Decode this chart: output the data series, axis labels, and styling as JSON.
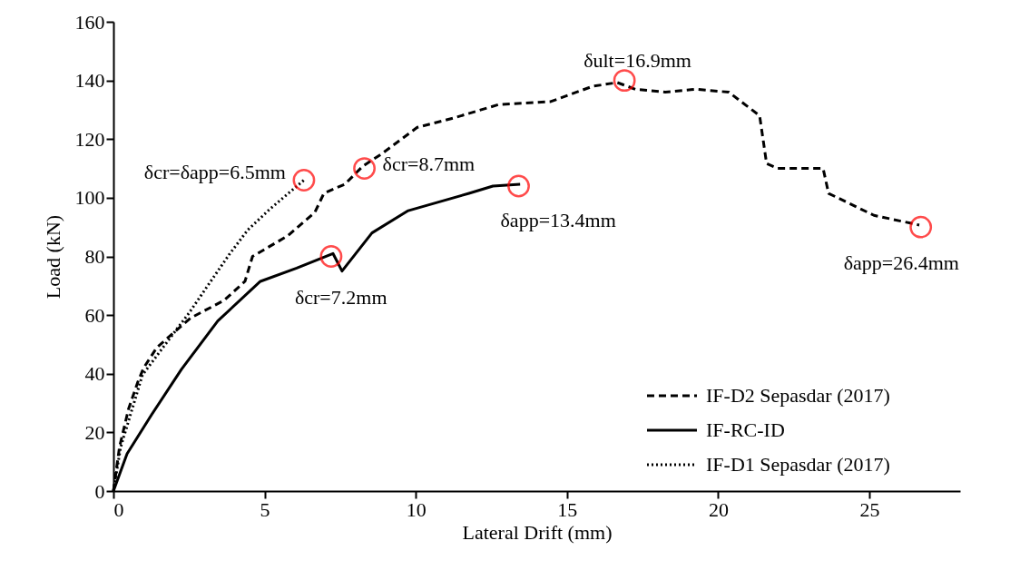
{
  "chart_data": {
    "type": "line",
    "xlabel": "Lateral Drift (mm)",
    "ylabel": "Load (kN)",
    "xlim": [
      0,
      28
    ],
    "xticks": [
      0,
      5,
      10,
      15,
      20,
      25
    ],
    "ylim": [
      0,
      160
    ],
    "yticks": [
      0,
      20,
      40,
      60,
      80,
      100,
      120,
      140,
      160
    ],
    "grid": false,
    "legend": "bottom right",
    "marker": "none",
    "series": [
      {
        "name": "IF-D2 Sepasdar (2017)",
        "color": "#000000",
        "line_style": "dashed",
        "x": [
          0,
          0.2,
          0.5,
          0.8,
          1.0,
          1.44,
          2.55,
          3.66,
          4.35,
          4.6,
          5.76,
          6.66,
          6.96,
          7.65,
          8.25,
          8.85,
          10.05,
          11.25,
          12.75,
          14.46,
          15.85,
          16.66,
          17.26,
          18.25,
          19.27,
          20.35,
          21.37,
          21.6,
          21.97,
          23.47,
          23.65,
          25.15,
          26.65
        ],
        "values": [
          0,
          15,
          28,
          37,
          42,
          49,
          59,
          65,
          71.5,
          80,
          87,
          95,
          101.5,
          104.6,
          110.8,
          114.8,
          124,
          127.2,
          131.8,
          132.8,
          138,
          139.3,
          137,
          136,
          137,
          136,
          128,
          111.7,
          110,
          110,
          101.5,
          94,
          90.7
        ]
      },
      {
        "name": "IF-RC-ID",
        "color": "#000000",
        "line_style": "solid",
        "x": [
          0,
          0.45,
          1.26,
          2.25,
          3.45,
          4.86,
          6.06,
          7.26,
          7.56,
          8.55,
          9.75,
          11.76,
          12.55,
          13.45
        ],
        "values": [
          0,
          12.7,
          26,
          41.5,
          58,
          71.5,
          76,
          81,
          75,
          88,
          95.6,
          101.5,
          104,
          104.6
        ]
      },
      {
        "name": "IF-D1 Sepasdar (2017)",
        "color": "#000000",
        "line_style": "dotted",
        "x": [
          0,
          0.24,
          0.96,
          1.86,
          2.5,
          3.15,
          3.84,
          4.44,
          5.16,
          6.3
        ],
        "values": [
          0,
          15,
          39.6,
          52,
          60.7,
          70.5,
          80.8,
          89,
          96,
          106
        ]
      }
    ],
    "annotations": [
      {
        "text": "δcr=δapp=6.5mm",
        "x": 6.3,
        "y": 106
      },
      {
        "text": "δcr=8.7mm",
        "x": 8.3,
        "y": 110
      },
      {
        "text": "δcr=7.2mm",
        "x": 7.2,
        "y": 80
      },
      {
        "text": "δapp=13.4mm",
        "x": 13.4,
        "y": 104
      },
      {
        "text": "δult=16.9mm",
        "x": 16.9,
        "y": 140
      },
      {
        "text": "δapp=26.4mm",
        "x": 26.7,
        "y": 90
      }
    ]
  }
}
